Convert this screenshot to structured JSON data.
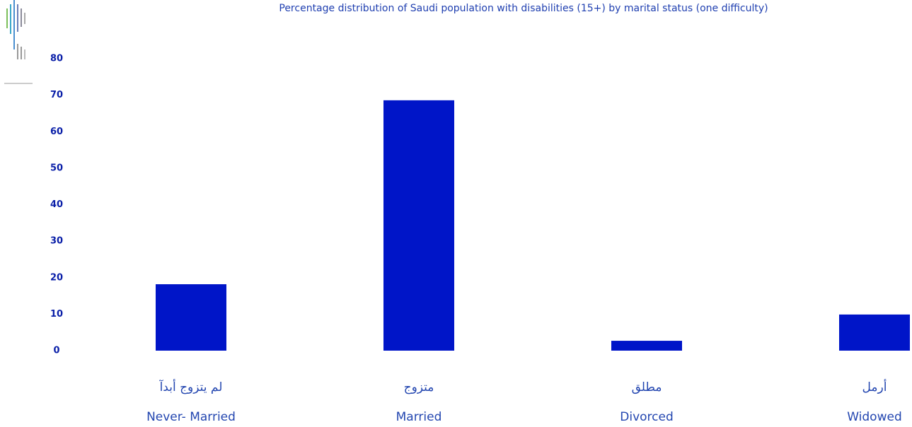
{
  "chart_data": {
    "type": "bar",
    "title": "Percentage distribution of Saudi population with disabilities (15+) by marital status (one difficulty)",
    "categories": [
      "Never- Married",
      "Married",
      "Divorced",
      "Widowed"
    ],
    "categories_arabic": [
      "لم يتزوج أبدآ",
      "متزوج",
      "مطلق",
      "أرمل"
    ],
    "values": [
      18.2,
      68.6,
      2.7,
      9.9
    ],
    "color": "#0015c8",
    "ylim": [
      0,
      80
    ],
    "yticks": [
      0,
      10,
      20,
      30,
      40,
      50,
      60,
      70,
      80
    ],
    "grid": false
  }
}
